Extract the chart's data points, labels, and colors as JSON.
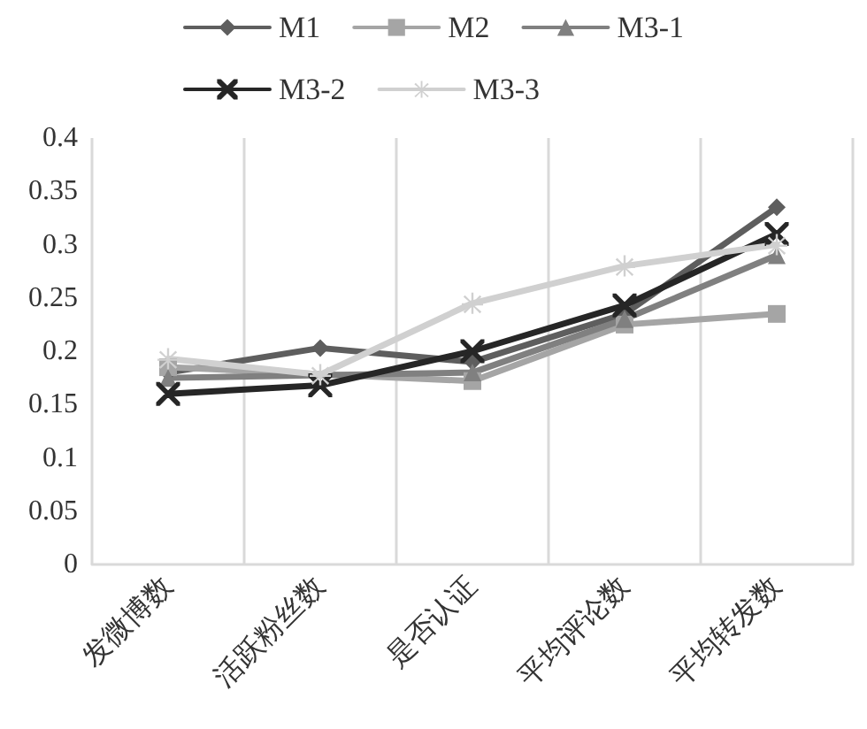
{
  "chart_data": {
    "type": "line",
    "categories": [
      "发微博数",
      "活跃粉丝数",
      "是否认证",
      "平均评论数",
      "平均转发数"
    ],
    "series": [
      {
        "name": "M1",
        "color": "#5e5e5e",
        "marker": "diamond",
        "values": [
          0.18,
          0.203,
          0.19,
          0.235,
          0.335
        ]
      },
      {
        "name": "M2",
        "color": "#a5a5a5",
        "marker": "square",
        "values": [
          0.185,
          null,
          0.172,
          0.225,
          0.235
        ]
      },
      {
        "name": "M3-1",
        "color": "#808080",
        "marker": "triangle",
        "values": [
          0.175,
          null,
          0.18,
          0.23,
          0.29
        ]
      },
      {
        "name": "M3-2",
        "color": "#262626",
        "marker": "cross",
        "values": [
          0.16,
          0.168,
          0.2,
          0.243,
          0.31
        ]
      },
      {
        "name": "M3-3",
        "color": "#d0d0d0",
        "marker": "star",
        "values": [
          0.193,
          0.178,
          0.245,
          0.28,
          0.3
        ]
      }
    ],
    "ylim": [
      0,
      0.4
    ],
    "yticks": [
      0,
      0.05,
      0.1,
      0.15,
      0.2,
      0.25,
      0.3,
      0.35,
      0.4
    ],
    "grid": "x",
    "legend": "top",
    "line_style": "solid"
  }
}
